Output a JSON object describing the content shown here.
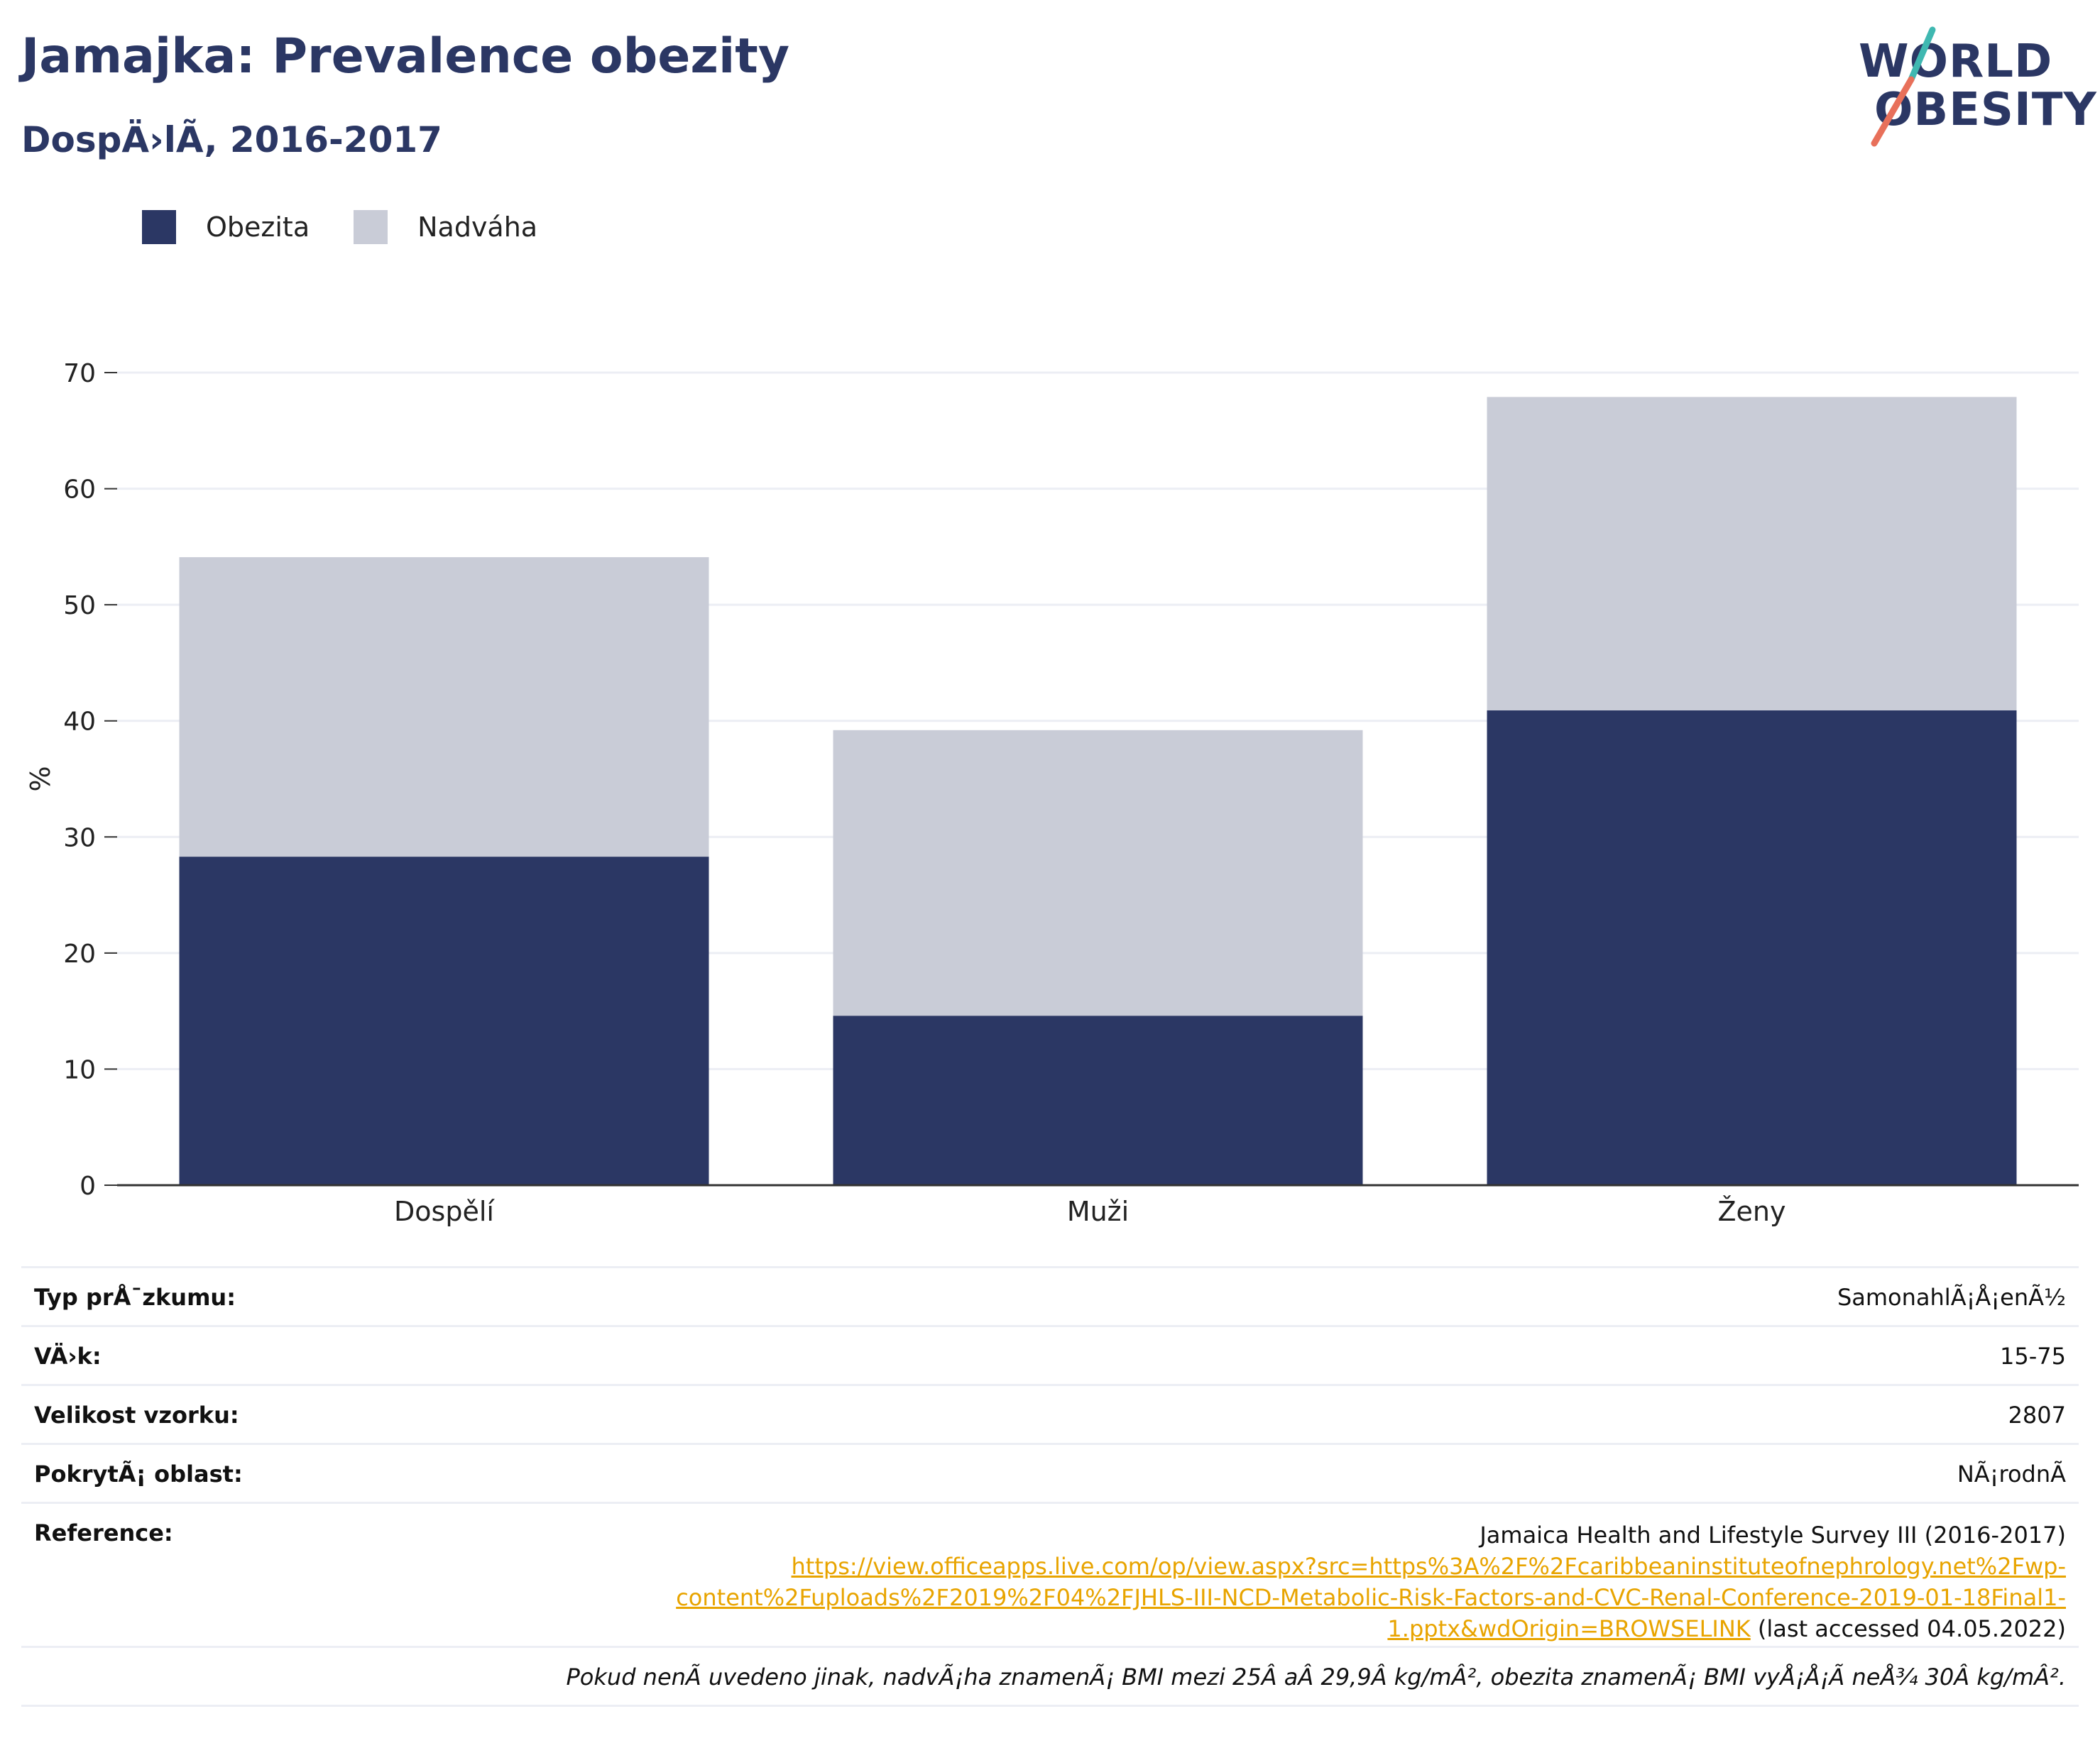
{
  "header": {
    "title": "Jamajka: Prevalence obezity",
    "subtitle": "DospÄ›lÃ, 2016-2017"
  },
  "logo": {
    "line1": "WORLD",
    "line2": "OBESITY",
    "accent_teal": "#3fb8b1",
    "accent_coral": "#e8705a"
  },
  "colors": {
    "obesity": "#2b3764",
    "overweight": "#c9ccd7",
    "grid": "#eceef4",
    "axis": "#333333"
  },
  "chart_data": {
    "type": "bar",
    "stacked": true,
    "categories": [
      "Dospělí",
      "Muži",
      "Ženy"
    ],
    "series": [
      {
        "name": "Obezita",
        "values": [
          28.3,
          14.6,
          40.9
        ]
      },
      {
        "name": "Nadváha",
        "values": [
          25.8,
          24.6,
          27.0
        ]
      }
    ],
    "totals": [
      54.1,
      39.2,
      67.9
    ],
    "ylabel": "%",
    "ylim": [
      0,
      70
    ],
    "yticks": [
      0,
      10,
      20,
      30,
      40,
      50,
      60,
      70
    ],
    "grid": true,
    "legend_position": "top-left"
  },
  "legend": {
    "items": [
      {
        "label": "Obezita"
      },
      {
        "label": "Nadváha"
      }
    ]
  },
  "info": {
    "survey_type_label": "Typ prÅ¯zkumu:",
    "survey_type_value": "SamonahlÃ¡Å¡enÃ½",
    "age_label": "VÄ›k:",
    "age_value": "15-75",
    "sample_label": "Velikost vzorku:",
    "sample_value": "2807",
    "area_label": "PokrytÃ¡ oblast:",
    "area_value": "NÃ¡rodnÃ",
    "reference_label": "Reference:",
    "reference_title": "Jamaica Health and Lifestyle Survey III (2016-2017)",
    "reference_link_1": "https://view.officeapps.live.com/op/view.aspx?src=https%3A%2F%2Fcaribbeaninstituteofnephrology.net%2Fwp-",
    "reference_link_2": "content%2Fuploads%2F2019%2F04%2FJHLS-III-NCD-Metabolic-Risk-Factors-and-CVC-Renal-Conference-2019-01-18Final1-",
    "reference_link_3": "1.pptx&wdOrigin=BROWSELINK",
    "reference_accessed": " (last accessed 04.05.2022)",
    "note": "Pokud nenÃ uvedeno jinak, nadvÃ¡ha znamenÃ¡ BMI mezi 25Â aÂ 29,9Â kg/mÂ², obezita znamenÃ¡ BMI vyÅ¡Å¡Ã neÅ¾ 30Â kg/mÂ²."
  }
}
